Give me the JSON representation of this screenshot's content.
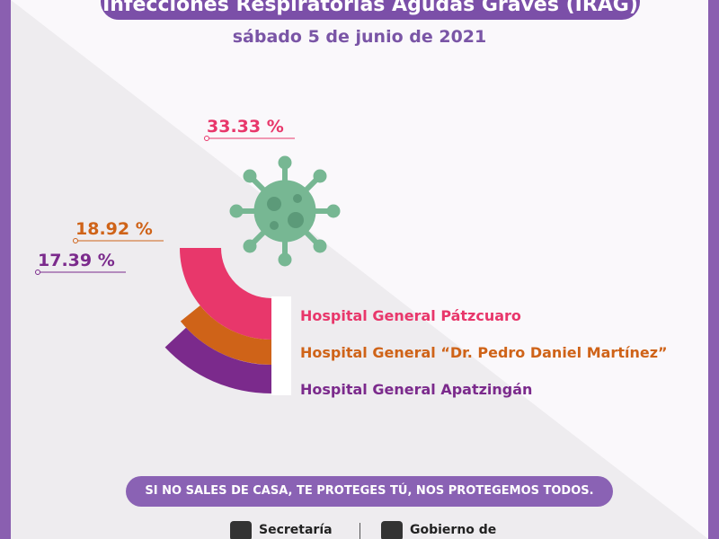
{
  "header": {
    "title": "Infecciones Respiratorias Agudas Graves (IRAG)",
    "date": "sábado 5 de junio de 2021"
  },
  "colors": {
    "pink": "#e8376b",
    "orange": "#cf6318",
    "purple": "#7b2a8c",
    "virus": "#77b793",
    "frame": "#8a5fb0"
  },
  "icon": "virus-icon",
  "chart_data": {
    "type": "radial-bar",
    "series": [
      {
        "name": "Hospital General Pátzcuaro",
        "value": 33.33,
        "label": "33.33 %"
      },
      {
        "name": "Hospital General “Dr. Pedro Daniel Martínez”",
        "value": 18.92,
        "label": "18.92 %"
      },
      {
        "name": "Hospital General Apatzingán",
        "value": 17.39,
        "label": "17.39 %"
      }
    ]
  },
  "footer": {
    "slogan": "SI NO SALES DE CASA, TE PROTEGES TÚ, NOS PROTEGEMOS TODOS.",
    "logo1_text": "Secretaría",
    "logo2_text": "Gobierno de"
  }
}
